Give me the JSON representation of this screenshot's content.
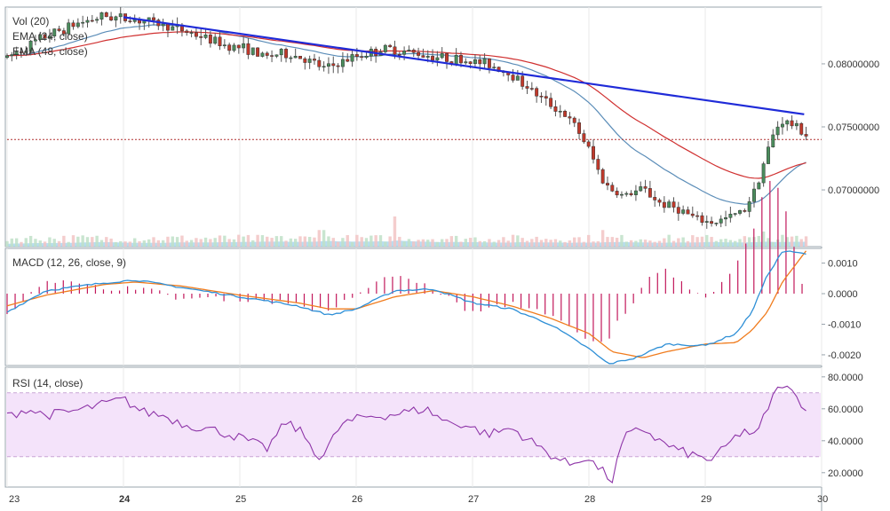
{
  "colors": {
    "up": "#4a8c5c",
    "down": "#c0392b",
    "ema24": "#5b8db8",
    "ema48": "#d03030",
    "trend": "#1f2bd8",
    "macd": "#2e8fd6",
    "signal": "#f07c1e",
    "hist": "#c2185b",
    "rsi": "#8e35a8",
    "rsi_band": "#f4e3fa",
    "grid": "#e8e8e8",
    "vol_up": "#bfe0c8",
    "vol_down": "#f2c4c4",
    "vol_ma": "#9fd2ee"
  },
  "panels": {
    "price": {
      "legend": [
        "Vol (20)",
        "EMA (24, close)",
        "EMA (48, close)"
      ]
    },
    "macd": {
      "legend": "MACD (12, 26, close, 9)"
    },
    "rsi": {
      "legend": "RSI (14, close)"
    }
  },
  "chart_data": [
    {
      "type": "candlestick",
      "panel": "price",
      "ylim": [
        0.0655,
        0.0845
      ],
      "yticks": [
        "0.07000000",
        "0.07500000",
        "0.08000000"
      ],
      "ytick_values": [
        0.07,
        0.075,
        0.08
      ],
      "last_price": 0.074,
      "x_labels": [
        "23",
        "24",
        "25",
        "26",
        "27",
        "28",
        "29",
        "30"
      ],
      "x_bold": "24",
      "anchors": [
        [
          0.0,
          0.0805
        ],
        [
          1.0,
          0.0822
        ],
        [
          1.8,
          0.0832
        ],
        [
          2.5,
          0.0838
        ],
        [
          3.0,
          0.0836
        ],
        [
          3.6,
          0.0834
        ],
        [
          4.6,
          0.0826
        ],
        [
          5.6,
          0.0815
        ],
        [
          6.2,
          0.0812
        ],
        [
          6.6,
          0.0805
        ],
        [
          7.0,
          0.0808
        ],
        [
          7.5,
          0.0806
        ],
        [
          8.2,
          0.0796
        ],
        [
          9.0,
          0.0806
        ],
        [
          9.8,
          0.0812
        ],
        [
          10.4,
          0.0809
        ],
        [
          11.2,
          0.0805
        ],
        [
          12.4,
          0.08
        ],
        [
          13.0,
          0.0792
        ],
        [
          13.4,
          0.0782
        ],
        [
          13.8,
          0.0772
        ],
        [
          14.3,
          0.0762
        ],
        [
          14.7,
          0.0748
        ],
        [
          15.0,
          0.0732
        ],
        [
          15.2,
          0.0718
        ],
        [
          15.4,
          0.0705
        ],
        [
          15.6,
          0.07
        ],
        [
          15.9,
          0.0695
        ],
        [
          16.4,
          0.0701
        ],
        [
          16.8,
          0.069
        ],
        [
          17.3,
          0.0685
        ],
        [
          17.8,
          0.0676
        ],
        [
          18.2,
          0.0674
        ],
        [
          18.6,
          0.0678
        ],
        [
          19.0,
          0.0684
        ],
        [
          19.3,
          0.0702
        ],
        [
          19.6,
          0.073
        ],
        [
          19.8,
          0.0748
        ],
        [
          20.0,
          0.0755
        ],
        [
          20.4,
          0.0749
        ],
        [
          20.6,
          0.0744
        ]
      ],
      "trendline": {
        "from": [
          3.0,
          0.0837
        ],
        "to": [
          20.55,
          0.076
        ]
      }
    },
    {
      "type": "bar",
      "panel": "volume",
      "series": [
        {
          "name": "Vol (20)"
        }
      ],
      "spikes": [
        [
          10.0,
          1.0
        ],
        [
          15.4,
          0.55
        ],
        [
          19.5,
          0.5
        ],
        [
          7.0,
          0.35
        ],
        [
          8.1,
          0.55
        ]
      ]
    },
    {
      "type": "line",
      "panel": "macd",
      "ylim": [
        -0.00235,
        0.00148
      ],
      "yticks": [
        "0.0010",
        "0.0000",
        "-0.0010",
        "-0.0020"
      ],
      "ytick_values": [
        0.001,
        0.0,
        -0.001,
        -0.002
      ],
      "macd_anchors": [
        [
          0.0,
          -0.0006
        ],
        [
          1.0,
          0.0001
        ],
        [
          2.5,
          0.00035
        ],
        [
          3.3,
          0.00045
        ],
        [
          4.5,
          0.0002
        ],
        [
          6.0,
          -0.0001
        ],
        [
          7.5,
          -0.0004
        ],
        [
          8.3,
          -0.0007
        ],
        [
          9.0,
          -0.0005
        ],
        [
          10.0,
          0.0001
        ],
        [
          11.0,
          0.00015
        ],
        [
          12.0,
          -0.0003
        ],
        [
          13.0,
          -0.0005
        ],
        [
          14.0,
          -0.001
        ],
        [
          15.0,
          -0.0018
        ],
        [
          15.5,
          -0.0023
        ],
        [
          16.2,
          -0.0021
        ],
        [
          17.0,
          -0.00165
        ],
        [
          18.0,
          -0.0017
        ],
        [
          18.8,
          -0.0013
        ],
        [
          19.2,
          -0.0006
        ],
        [
          19.6,
          0.0006
        ],
        [
          20.0,
          0.0014
        ],
        [
          20.6,
          0.0013
        ]
      ],
      "signal_anchors": [
        [
          0.0,
          -0.0004
        ],
        [
          1.0,
          -5e-05
        ],
        [
          2.5,
          0.0003
        ],
        [
          3.3,
          0.00038
        ],
        [
          4.5,
          0.00025
        ],
        [
          6.0,
          -5e-05
        ],
        [
          7.5,
          -0.0003
        ],
        [
          8.3,
          -0.0005
        ],
        [
          9.0,
          -0.0005
        ],
        [
          10.0,
          -0.0001
        ],
        [
          11.0,
          0.0001
        ],
        [
          12.0,
          -0.0001
        ],
        [
          13.0,
          -0.0004
        ],
        [
          14.0,
          -0.0008
        ],
        [
          15.0,
          -0.0013
        ],
        [
          15.6,
          -0.0019
        ],
        [
          16.4,
          -0.0021
        ],
        [
          17.0,
          -0.0019
        ],
        [
          18.0,
          -0.00165
        ],
        [
          18.8,
          -0.0016
        ],
        [
          19.2,
          -0.0012
        ],
        [
          19.6,
          -0.0006
        ],
        [
          20.0,
          0.0004
        ],
        [
          20.6,
          0.0014
        ]
      ]
    },
    {
      "type": "line",
      "panel": "rsi",
      "ylim": [
        11,
        86
      ],
      "yticks": [
        "20.0000",
        "40.0000",
        "60.0000",
        "80.0000"
      ],
      "ytick_values": [
        20,
        40,
        60,
        80
      ],
      "band": [
        30,
        70
      ],
      "anchors": [
        [
          0.0,
          55
        ],
        [
          0.5,
          60
        ],
        [
          1.0,
          56
        ],
        [
          1.6,
          58
        ],
        [
          2.0,
          60
        ],
        [
          2.5,
          63
        ],
        [
          3.0,
          66
        ],
        [
          3.5,
          58
        ],
        [
          4.0,
          56
        ],
        [
          4.6,
          50
        ],
        [
          5.3,
          47
        ],
        [
          6.0,
          42
        ],
        [
          6.7,
          35
        ],
        [
          7.2,
          52
        ],
        [
          7.6,
          45
        ],
        [
          8.1,
          28
        ],
        [
          8.6,
          50
        ],
        [
          9.2,
          55
        ],
        [
          9.8,
          56
        ],
        [
          10.3,
          58
        ],
        [
          10.8,
          60
        ],
        [
          11.3,
          52
        ],
        [
          11.8,
          50
        ],
        [
          12.4,
          44
        ],
        [
          13.0,
          48
        ],
        [
          13.6,
          38
        ],
        [
          14.1,
          30
        ],
        [
          14.5,
          25
        ],
        [
          14.9,
          30
        ],
        [
          15.3,
          22
        ],
        [
          15.6,
          15
        ],
        [
          15.9,
          42
        ],
        [
          16.4,
          48
        ],
        [
          16.8,
          40
        ],
        [
          17.3,
          34
        ],
        [
          17.8,
          30
        ],
        [
          18.2,
          28
        ],
        [
          18.6,
          38
        ],
        [
          19.0,
          47
        ],
        [
          19.3,
          42
        ],
        [
          19.7,
          66
        ],
        [
          20.0,
          76
        ],
        [
          20.3,
          68
        ],
        [
          20.6,
          61
        ]
      ]
    }
  ]
}
